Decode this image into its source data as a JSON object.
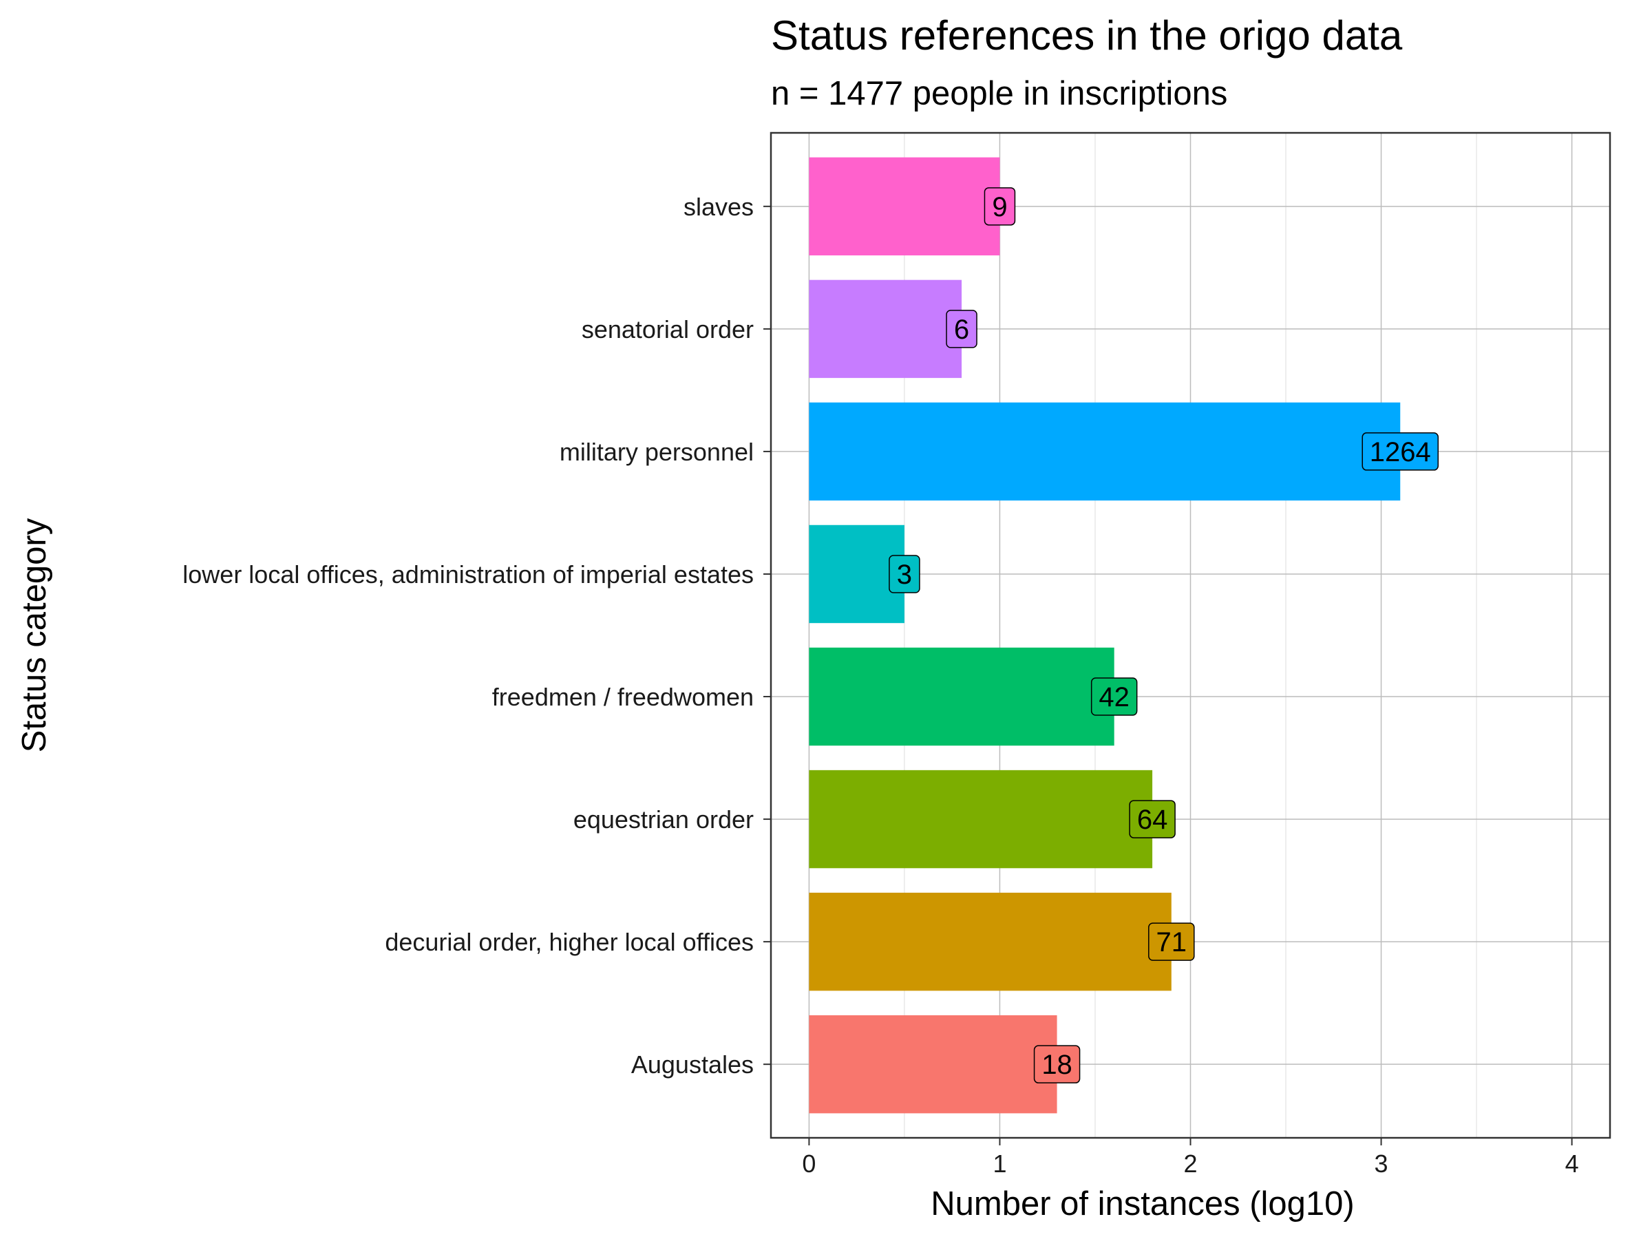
{
  "chart_data": {
    "type": "bar",
    "orientation": "horizontal",
    "title": "Status references in the origo data",
    "subtitle": "n = 1477 people in inscriptions",
    "xlabel": "Number of instances (log10)",
    "ylabel": "Status category",
    "xlim": [
      -0.2,
      4.2
    ],
    "x_ticks": [
      0,
      1,
      2,
      3,
      4
    ],
    "x_tick_labels": [
      "0",
      "1",
      "2",
      "3",
      "4"
    ],
    "grid": true,
    "legend": "none",
    "categories": [
      "Augustales",
      "decurial order, higher local offices",
      "equestrian order",
      "freedmen / freedwomen",
      "lower local offices, administration of imperial estates",
      "military personnel",
      "senatorial order",
      "slaves"
    ],
    "counts": [
      18,
      71,
      64,
      42,
      3,
      1264,
      6,
      9
    ],
    "values": [
      1.3,
      1.9,
      1.8,
      1.6,
      0.5,
      3.1,
      0.8,
      1.0
    ],
    "data_labels": [
      "18",
      "71",
      "64",
      "42",
      "3",
      "1264",
      "6",
      "9"
    ],
    "colors": [
      "#F8766D",
      "#CD9600",
      "#7CAE00",
      "#00BE67",
      "#00BFC4",
      "#00A9FF",
      "#C77CFF",
      "#FF61CC"
    ]
  }
}
